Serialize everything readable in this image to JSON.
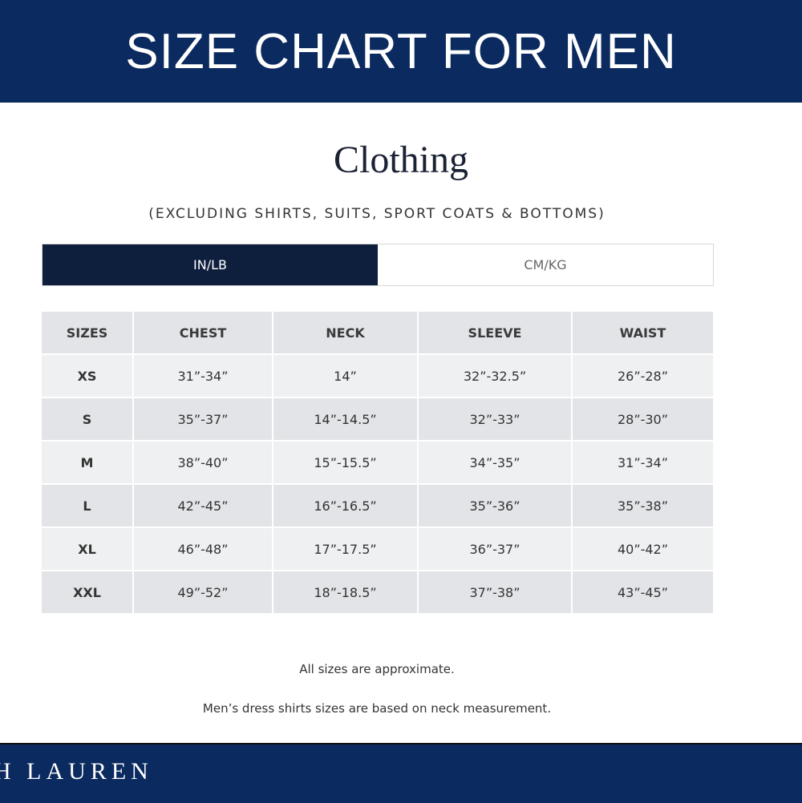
{
  "banner": {
    "title": "SIZE CHART FOR MEN"
  },
  "section": {
    "title": "Clothing",
    "subtitle": "(EXCLUDING SHIRTS, SUITS, SPORT COATS & BOTTOMS)"
  },
  "unit_toggle": {
    "options": [
      "IN/LB",
      "CM/KG"
    ],
    "selected": "IN/LB"
  },
  "table": {
    "headers": [
      "SIZES",
      "CHEST",
      "NECK",
      "SLEEVE",
      "WAIST"
    ],
    "rows": [
      [
        "XS",
        "31”-34”",
        "14”",
        "32”-32.5”",
        "26”-28”"
      ],
      [
        "S",
        "35”-37”",
        "14”-14.5”",
        "32”-33”",
        "28”-30”"
      ],
      [
        "M",
        "38”-40”",
        "15”-15.5”",
        "34”-35”",
        "31”-34”"
      ],
      [
        "L",
        "42”-45”",
        "16”-16.5”",
        "35”-36”",
        "35”-38”"
      ],
      [
        "XL",
        "46”-48”",
        "17”-17.5”",
        "36”-37”",
        "40”-42”"
      ],
      [
        "XXL",
        "49”-52”",
        "18”-18.5”",
        "37”-38”",
        "43”-45”"
      ]
    ]
  },
  "notes": [
    "All sizes are approximate.",
    "Men’s dress shirts sizes are based on neck measurement."
  ],
  "footer": {
    "brand": "H LAUREN"
  },
  "colors": {
    "navy": "#0b2a5f",
    "toggle_active": "#0e1e3d",
    "row_light": "#eef0f1",
    "row_dark": "#e2e4e7"
  }
}
